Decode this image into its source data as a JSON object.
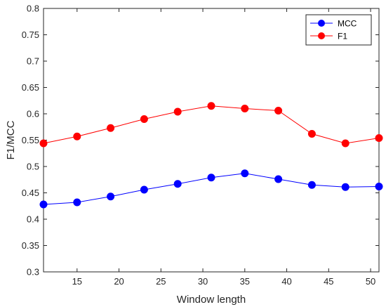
{
  "chart_data": {
    "type": "line",
    "title": "",
    "xlabel": "Window length",
    "ylabel": "F1/MCC",
    "xlim": [
      11,
      51
    ],
    "ylim": [
      0.3,
      0.8
    ],
    "xticks": [
      15,
      20,
      25,
      30,
      35,
      40,
      45,
      50
    ],
    "yticks": [
      0.3,
      0.35,
      0.4,
      0.45,
      0.5,
      0.55,
      0.6,
      0.65,
      0.7,
      0.75,
      0.8
    ],
    "ytick_labels": [
      "0.3",
      "0.35",
      "0.4",
      "0.45",
      "0.5",
      "0.55",
      "0.6",
      "0.65",
      "0.7",
      "0.75",
      "0.8"
    ],
    "grid": false,
    "legend_position": "top-right",
    "x": [
      11,
      15,
      19,
      23,
      27,
      31,
      35,
      39,
      43,
      47,
      51
    ],
    "series": [
      {
        "name": "MCC",
        "color": "#0000ff",
        "values": [
          0.428,
          0.432,
          0.443,
          0.456,
          0.467,
          0.479,
          0.487,
          0.476,
          0.465,
          0.461,
          0.462
        ]
      },
      {
        "name": "F1",
        "color": "#ff0000",
        "values": [
          0.544,
          0.557,
          0.573,
          0.59,
          0.604,
          0.615,
          0.61,
          0.606,
          0.562,
          0.544,
          0.554
        ]
      }
    ]
  }
}
